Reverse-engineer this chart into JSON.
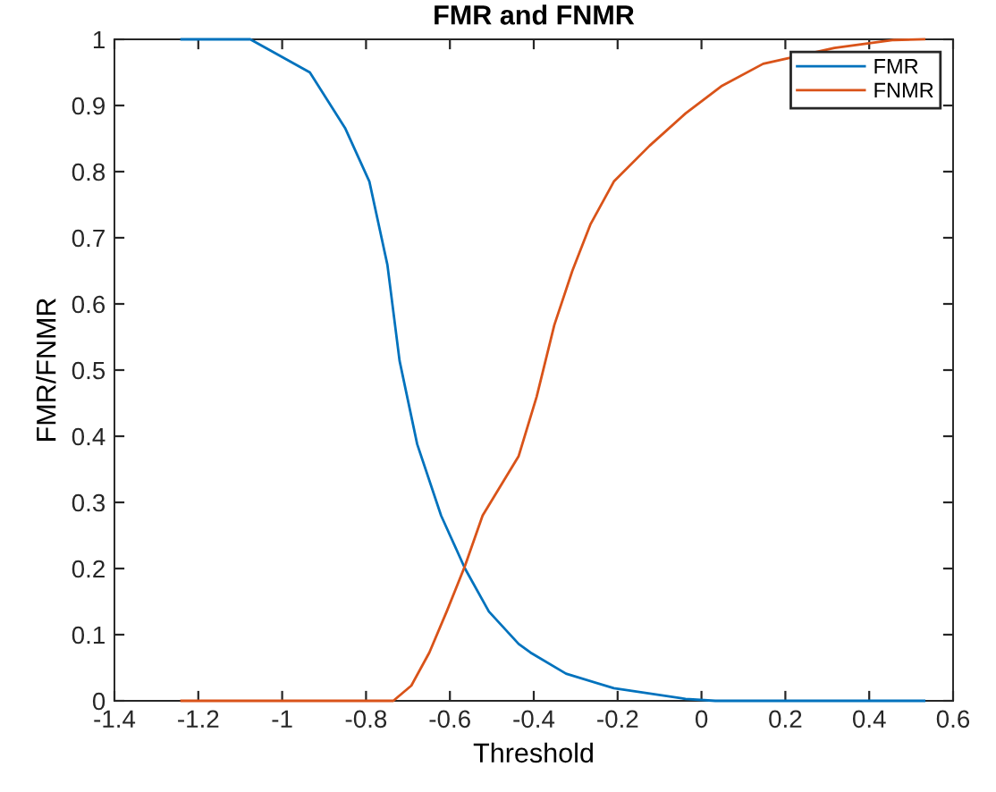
{
  "chart_data": {
    "type": "line",
    "title": "FMR and FNMR",
    "xlabel": "Threshold",
    "ylabel": "FMR/FNMR",
    "xlim": [
      -1.4,
      0.6
    ],
    "xticks": [
      -1.4,
      -1.2,
      -1,
      -0.8,
      -0.6,
      -0.4,
      -0.2,
      0,
      0.2,
      0.4,
      0.6
    ],
    "ylim": [
      0,
      1
    ],
    "yticks": [
      0,
      0.1,
      0.2,
      0.3,
      0.4,
      0.5,
      0.6,
      0.7,
      0.8,
      0.9,
      1
    ],
    "legend": "top right",
    "grid": false,
    "marker": "none",
    "line_style": "solid",
    "series": [
      {
        "name": "FMR",
        "color": "#0072bd",
        "x": [
          -1.24,
          -1.076,
          -0.934,
          -0.85,
          -0.792,
          -0.749,
          -0.72,
          -0.678,
          -0.621,
          -0.564,
          -0.507,
          -0.436,
          -0.408,
          -0.323,
          -0.209,
          -0.038,
          0.033,
          0.531
        ],
        "values": [
          1,
          1,
          0.95,
          0.866,
          0.785,
          0.659,
          0.514,
          0.388,
          0.28,
          0.2,
          0.135,
          0.086,
          0.073,
          0.041,
          0.019,
          0.003,
          0,
          0
        ]
      },
      {
        "name": "FNMR",
        "color": "#d95319",
        "x": [
          -1.24,
          -0.806,
          -0.735,
          -0.692,
          -0.649,
          -0.607,
          -0.564,
          -0.522,
          -0.479,
          -0.436,
          -0.393,
          -0.351,
          -0.308,
          -0.265,
          -0.209,
          -0.124,
          -0.038,
          0.047,
          0.147,
          0.317,
          0.459,
          0.531
        ],
        "values": [
          0,
          0,
          0,
          0.023,
          0.073,
          0.136,
          0.204,
          0.28,
          0.325,
          0.37,
          0.46,
          0.568,
          0.65,
          0.72,
          0.785,
          0.839,
          0.888,
          0.929,
          0.963,
          0.987,
          0.999,
          1
        ]
      }
    ]
  }
}
